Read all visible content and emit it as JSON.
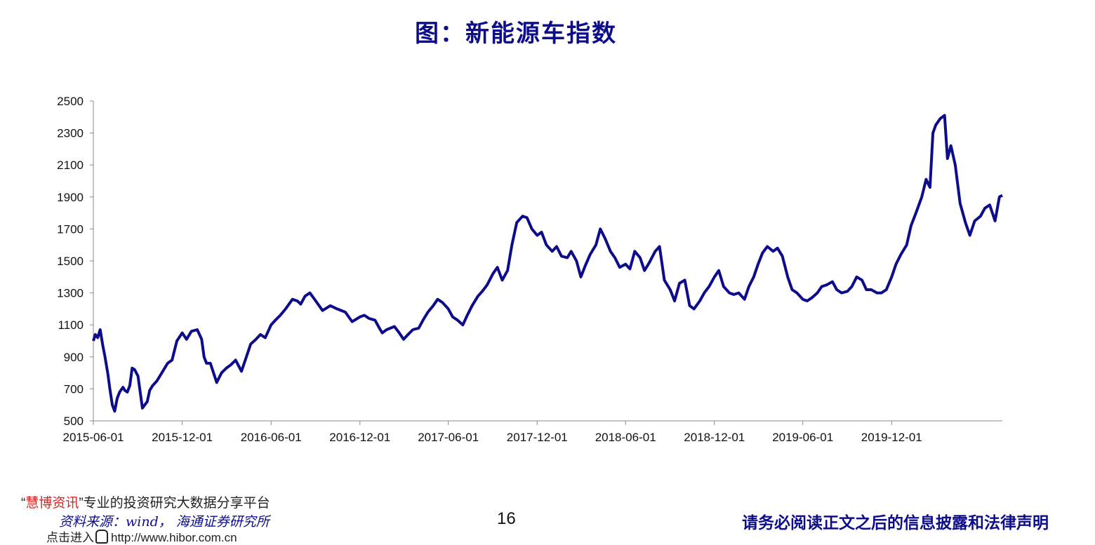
{
  "title": "图：新能源车指数",
  "chart_data": {
    "type": "line",
    "title": "图：新能源车指数",
    "xlabel": "",
    "ylabel": "",
    "ylim": [
      500,
      2500
    ],
    "yticks": [
      500,
      700,
      900,
      1100,
      1300,
      1500,
      1700,
      1900,
      2100,
      2300,
      2500
    ],
    "xlim": [
      "2015-06-01",
      "2020-07-16"
    ],
    "xticks": [
      "2015-06-01",
      "2015-12-01",
      "2016-06-01",
      "2016-12-01",
      "2017-06-01",
      "2017-12-01",
      "2018-06-01",
      "2018-12-01",
      "2019-06-01",
      "2019-12-01"
    ],
    "grid": false,
    "legend": "none",
    "color": "#0d0d8c",
    "series": [
      {
        "x": [
          "2015-06-01",
          "2015-06-05",
          "2015-06-10",
          "2015-06-15",
          "2015-06-20",
          "2015-06-25",
          "2015-07-01",
          "2015-07-05",
          "2015-07-10",
          "2015-07-15",
          "2015-07-20",
          "2015-07-25",
          "2015-08-01",
          "2015-08-05",
          "2015-08-10",
          "2015-08-15",
          "2015-08-20",
          "2015-08-25",
          "2015-09-01",
          "2015-09-10",
          "2015-09-15",
          "2015-09-20",
          "2015-09-25",
          "2015-10-01",
          "2015-10-10",
          "2015-10-20",
          "2015-11-01",
          "2015-11-10",
          "2015-11-20",
          "2015-12-01",
          "2015-12-10",
          "2015-12-20",
          "2016-01-01",
          "2016-01-10",
          "2016-01-15",
          "2016-01-20",
          "2016-01-28",
          "2016-02-10",
          "2016-02-20",
          "2016-03-01",
          "2016-03-10",
          "2016-03-20",
          "2016-04-01",
          "2016-04-10",
          "2016-04-20",
          "2016-05-01",
          "2016-05-10",
          "2016-05-20",
          "2016-06-01",
          "2016-06-10",
          "2016-06-20",
          "2016-07-01",
          "2016-07-15",
          "2016-07-25",
          "2016-08-01",
          "2016-08-10",
          "2016-08-20",
          "2016-09-01",
          "2016-09-15",
          "2016-10-01",
          "2016-10-15",
          "2016-11-01",
          "2016-11-15",
          "2016-12-01",
          "2016-12-10",
          "2016-12-20",
          "2017-01-01",
          "2017-01-10",
          "2017-01-16",
          "2017-01-25",
          "2017-02-10",
          "2017-02-20",
          "2017-03-01",
          "2017-03-10",
          "2017-03-20",
          "2017-04-01",
          "2017-04-10",
          "2017-04-20",
          "2017-05-01",
          "2017-05-10",
          "2017-05-20",
          "2017-06-01",
          "2017-06-10",
          "2017-06-20",
          "2017-07-01",
          "2017-07-10",
          "2017-07-20",
          "2017-08-01",
          "2017-08-10",
          "2017-08-20",
          "2017-09-01",
          "2017-09-10",
          "2017-09-20",
          "2017-10-01",
          "2017-10-10",
          "2017-10-20",
          "2017-11-01",
          "2017-11-10",
          "2017-11-20",
          "2017-12-01",
          "2017-12-10",
          "2017-12-20",
          "2018-01-01",
          "2018-01-10",
          "2018-01-20",
          "2018-02-01",
          "2018-02-09",
          "2018-02-20",
          "2018-03-01",
          "2018-03-10",
          "2018-03-20",
          "2018-04-01",
          "2018-04-10",
          "2018-04-20",
          "2018-05-01",
          "2018-05-10",
          "2018-05-20",
          "2018-06-01",
          "2018-06-10",
          "2018-06-20",
          "2018-07-01",
          "2018-07-10",
          "2018-07-20",
          "2018-08-01",
          "2018-08-10",
          "2018-08-20",
          "2018-09-01",
          "2018-09-10",
          "2018-09-20",
          "2018-10-01",
          "2018-10-11",
          "2018-10-20",
          "2018-11-01",
          "2018-11-10",
          "2018-11-20",
          "2018-12-01",
          "2018-12-10",
          "2018-12-20",
          "2019-01-01",
          "2019-01-10",
          "2019-01-20",
          "2019-02-01",
          "2019-02-10",
          "2019-02-20",
          "2019-03-01",
          "2019-03-10",
          "2019-03-20",
          "2019-04-01",
          "2019-04-10",
          "2019-04-20",
          "2019-05-01",
          "2019-05-10",
          "2019-05-20",
          "2019-06-01",
          "2019-06-10",
          "2019-06-20",
          "2019-07-01",
          "2019-07-10",
          "2019-07-20",
          "2019-08-01",
          "2019-08-10",
          "2019-08-20",
          "2019-09-01",
          "2019-09-10",
          "2019-09-20",
          "2019-10-01",
          "2019-10-10",
          "2019-10-20",
          "2019-11-01",
          "2019-11-10",
          "2019-11-20",
          "2019-12-01",
          "2019-12-10",
          "2019-12-20",
          "2020-01-01",
          "2020-01-10",
          "2020-01-20",
          "2020-02-01",
          "2020-02-10",
          "2020-02-18",
          "2020-02-24",
          "2020-03-01",
          "2020-03-10",
          "2020-03-19",
          "2020-03-25",
          "2020-04-01",
          "2020-04-10",
          "2020-04-20",
          "2020-05-01",
          "2020-05-10",
          "2020-05-20",
          "2020-06-01",
          "2020-06-10",
          "2020-06-20",
          "2020-07-01",
          "2020-07-10",
          "2020-07-16"
        ],
        "y": [
          1000,
          1040,
          1020,
          1070,
          980,
          900,
          790,
          700,
          600,
          560,
          640,
          680,
          710,
          690,
          680,
          720,
          830,
          820,
          780,
          580,
          600,
          620,
          690,
          720,
          750,
          800,
          860,
          880,
          1000,
          1050,
          1010,
          1060,
          1070,
          1010,
          900,
          860,
          860,
          740,
          800,
          830,
          850,
          880,
          810,
          890,
          980,
          1010,
          1040,
          1020,
          1100,
          1130,
          1160,
          1200,
          1260,
          1250,
          1230,
          1280,
          1300,
          1250,
          1190,
          1220,
          1200,
          1180,
          1120,
          1150,
          1160,
          1140,
          1130,
          1080,
          1050,
          1070,
          1090,
          1050,
          1010,
          1040,
          1070,
          1080,
          1130,
          1180,
          1220,
          1260,
          1240,
          1200,
          1150,
          1130,
          1100,
          1160,
          1220,
          1280,
          1310,
          1350,
          1420,
          1460,
          1380,
          1440,
          1600,
          1740,
          1780,
          1770,
          1700,
          1660,
          1680,
          1600,
          1560,
          1590,
          1530,
          1520,
          1560,
          1500,
          1400,
          1470,
          1540,
          1600,
          1700,
          1640,
          1560,
          1520,
          1460,
          1480,
          1450,
          1560,
          1520,
          1440,
          1490,
          1560,
          1590,
          1380,
          1320,
          1250,
          1360,
          1380,
          1220,
          1200,
          1250,
          1300,
          1340,
          1400,
          1440,
          1340,
          1300,
          1290,
          1300,
          1260,
          1340,
          1400,
          1480,
          1550,
          1590,
          1560,
          1580,
          1530,
          1400,
          1320,
          1300,
          1260,
          1250,
          1270,
          1300,
          1340,
          1350,
          1370,
          1320,
          1300,
          1310,
          1340,
          1400,
          1380,
          1320,
          1320,
          1300,
          1300,
          1320,
          1400,
          1480,
          1540,
          1600,
          1720,
          1800,
          1900,
          2010,
          1960,
          2300,
          2350,
          2390,
          2410,
          2140,
          2220,
          2100,
          1860,
          1740,
          1660,
          1750,
          1780,
          1830,
          1850,
          1750,
          1900,
          1910
        ]
      }
    ],
    "source": "资料来源：wind， 海通证券研究所"
  },
  "footer": {
    "quote_open": "“",
    "brand": "慧博资讯",
    "quote_close": "”",
    "slogan": "专业的投资研究大数据分享平台",
    "link_prefix": "点击进入",
    "link_url": "http://www.hibor.com.cn",
    "page_number": "16",
    "disclaimer": "请务必阅读正文之后的信息披露和法律声明"
  }
}
